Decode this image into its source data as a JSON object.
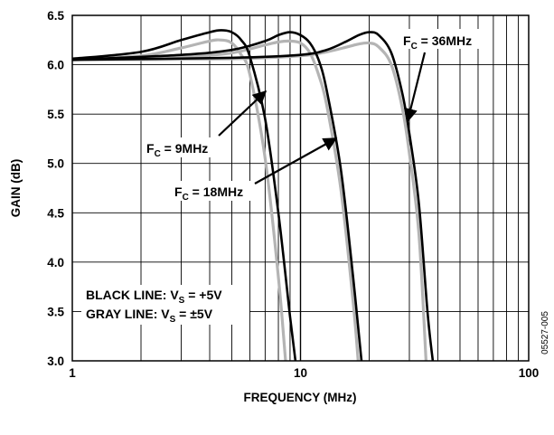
{
  "chart_data": {
    "type": "line",
    "title": "",
    "xlabel": "FREQUENCY (MHz)",
    "ylabel": "GAIN (dB)",
    "x_scale": "log",
    "xlim": [
      1,
      100
    ],
    "ylim": [
      3.0,
      6.5
    ],
    "x_tick_labels": [
      "1",
      "10",
      "100"
    ],
    "x_ticks": [
      1,
      10,
      100
    ],
    "y_ticks": [
      3.0,
      3.5,
      4.0,
      4.5,
      5.0,
      5.5,
      6.0,
      6.5
    ],
    "y_tick_labels": [
      "3.0",
      "3.5",
      "4.0",
      "4.5",
      "5.0",
      "5.5",
      "6.0",
      "6.5"
    ],
    "grid": true,
    "series": [
      {
        "x": [
          1,
          2,
          3,
          4,
          4.5,
          5,
          5.5,
          6,
          7,
          8,
          9,
          9.5
        ],
        "y": [
          6.06,
          6.13,
          6.25,
          6.33,
          6.35,
          6.33,
          6.25,
          6.08,
          5.45,
          4.5,
          3.45,
          3.0
        ],
        "color": "#000000"
      },
      {
        "x": [
          1,
          2,
          3,
          4,
          4.5,
          5,
          5.5,
          6,
          7,
          8,
          8.6
        ],
        "y": [
          6.06,
          6.09,
          6.17,
          6.24,
          6.25,
          6.22,
          6.1,
          5.9,
          5.05,
          3.85,
          3.0
        ],
        "color": "#b4b4b4"
      },
      {
        "x": [
          1,
          3,
          5,
          7,
          8,
          9,
          10,
          11,
          12,
          13,
          15,
          17,
          18.5
        ],
        "y": [
          6.05,
          6.1,
          6.15,
          6.24,
          6.3,
          6.33,
          6.3,
          6.22,
          6.05,
          5.75,
          4.95,
          3.85,
          3.0
        ],
        "color": "#000000"
      },
      {
        "x": [
          1,
          3,
          5,
          7,
          8,
          9,
          10,
          11,
          12,
          13,
          15,
          17,
          17.9
        ],
        "y": [
          6.05,
          6.08,
          6.12,
          6.2,
          6.23,
          6.24,
          6.22,
          6.12,
          5.9,
          5.6,
          4.75,
          3.6,
          3.0
        ],
        "color": "#b4b4b4"
      },
      {
        "x": [
          1,
          5,
          10,
          13,
          16,
          18,
          20,
          22,
          25,
          28,
          30,
          33,
          36,
          38
        ],
        "y": [
          6.05,
          6.07,
          6.1,
          6.15,
          6.24,
          6.3,
          6.33,
          6.3,
          6.12,
          5.7,
          5.3,
          4.6,
          3.5,
          3.0
        ],
        "color": "#000000"
      },
      {
        "x": [
          1,
          5,
          10,
          13,
          16,
          18,
          20,
          22,
          25,
          28,
          30,
          33,
          35.5
        ],
        "y": [
          6.05,
          6.06,
          6.09,
          6.13,
          6.18,
          6.21,
          6.22,
          6.18,
          6.0,
          5.55,
          5.1,
          4.3,
          3.0
        ],
        "color": "#b4b4b4"
      }
    ],
    "annotations": [
      {
        "base": "F",
        "sub": "C",
        "rest": " = 36MHz"
      },
      {
        "base": "F",
        "sub": "C",
        "rest": " = 9MHz"
      },
      {
        "base": "F",
        "sub": "C",
        "rest": " = 18MHz"
      }
    ],
    "legend_note": [
      {
        "text": "BLACK LINE: V",
        "sub": "S",
        "rest": " = +5V"
      },
      {
        "text": "GRAY LINE: V",
        "sub": "S",
        "rest": " = ±5V"
      }
    ],
    "figure_id": "05527-005"
  }
}
